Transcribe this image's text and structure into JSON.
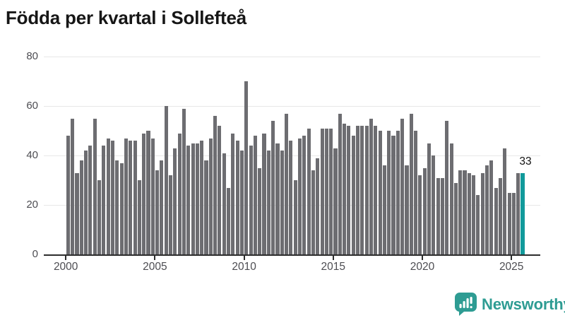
{
  "title": "Födda per kvartal i Sollefteå",
  "branding": {
    "name": "Newsworthy",
    "icon": "newsworthy-bars-bubble-icon"
  },
  "colors": {
    "bar": "#6d6d71",
    "highlight": "#119a9b",
    "logo_teal": "#2E9C93",
    "gridline": "#e7e7e7",
    "axis": "#2d2d2d",
    "tick_text": "#4d4d52",
    "title_text": "#161616"
  },
  "chart_data": {
    "type": "bar",
    "title": "Födda per kvartal i Sollefteå",
    "frequency": "quarterly",
    "x_start": "2000 Q1",
    "x_end": "2025 Q3",
    "x_tick_labels": [
      "2000",
      "2005",
      "2010",
      "2015",
      "2020",
      "2025"
    ],
    "y_ticks": [
      0,
      20,
      40,
      60,
      80
    ],
    "ylim": [
      0,
      80
    ],
    "grid": "horizontal",
    "legend": "none",
    "values": [
      48,
      55,
      33,
      38,
      42,
      44,
      55,
      30,
      44,
      47,
      46,
      38,
      37,
      47,
      46,
      46,
      30,
      49,
      50,
      47,
      34,
      38,
      60,
      32,
      43,
      49,
      59,
      44,
      45,
      45,
      46,
      38,
      47,
      56,
      52,
      41,
      27,
      49,
      46,
      42,
      70,
      44,
      48,
      35,
      49,
      42,
      54,
      45,
      42,
      57,
      46,
      30,
      47,
      48,
      51,
      34,
      39,
      51,
      51,
      51,
      43,
      57,
      53,
      52,
      48,
      52,
      52,
      52,
      55,
      52,
      50,
      36,
      50,
      48,
      50,
      55,
      36,
      57,
      50,
      32,
      35,
      45,
      40,
      31,
      31,
      54,
      45,
      29,
      34,
      34,
      33,
      32,
      24,
      33,
      36,
      38,
      27,
      31,
      43,
      25,
      25,
      33,
      33
    ],
    "highlight_index": 102,
    "highlight_value_label": "33"
  }
}
